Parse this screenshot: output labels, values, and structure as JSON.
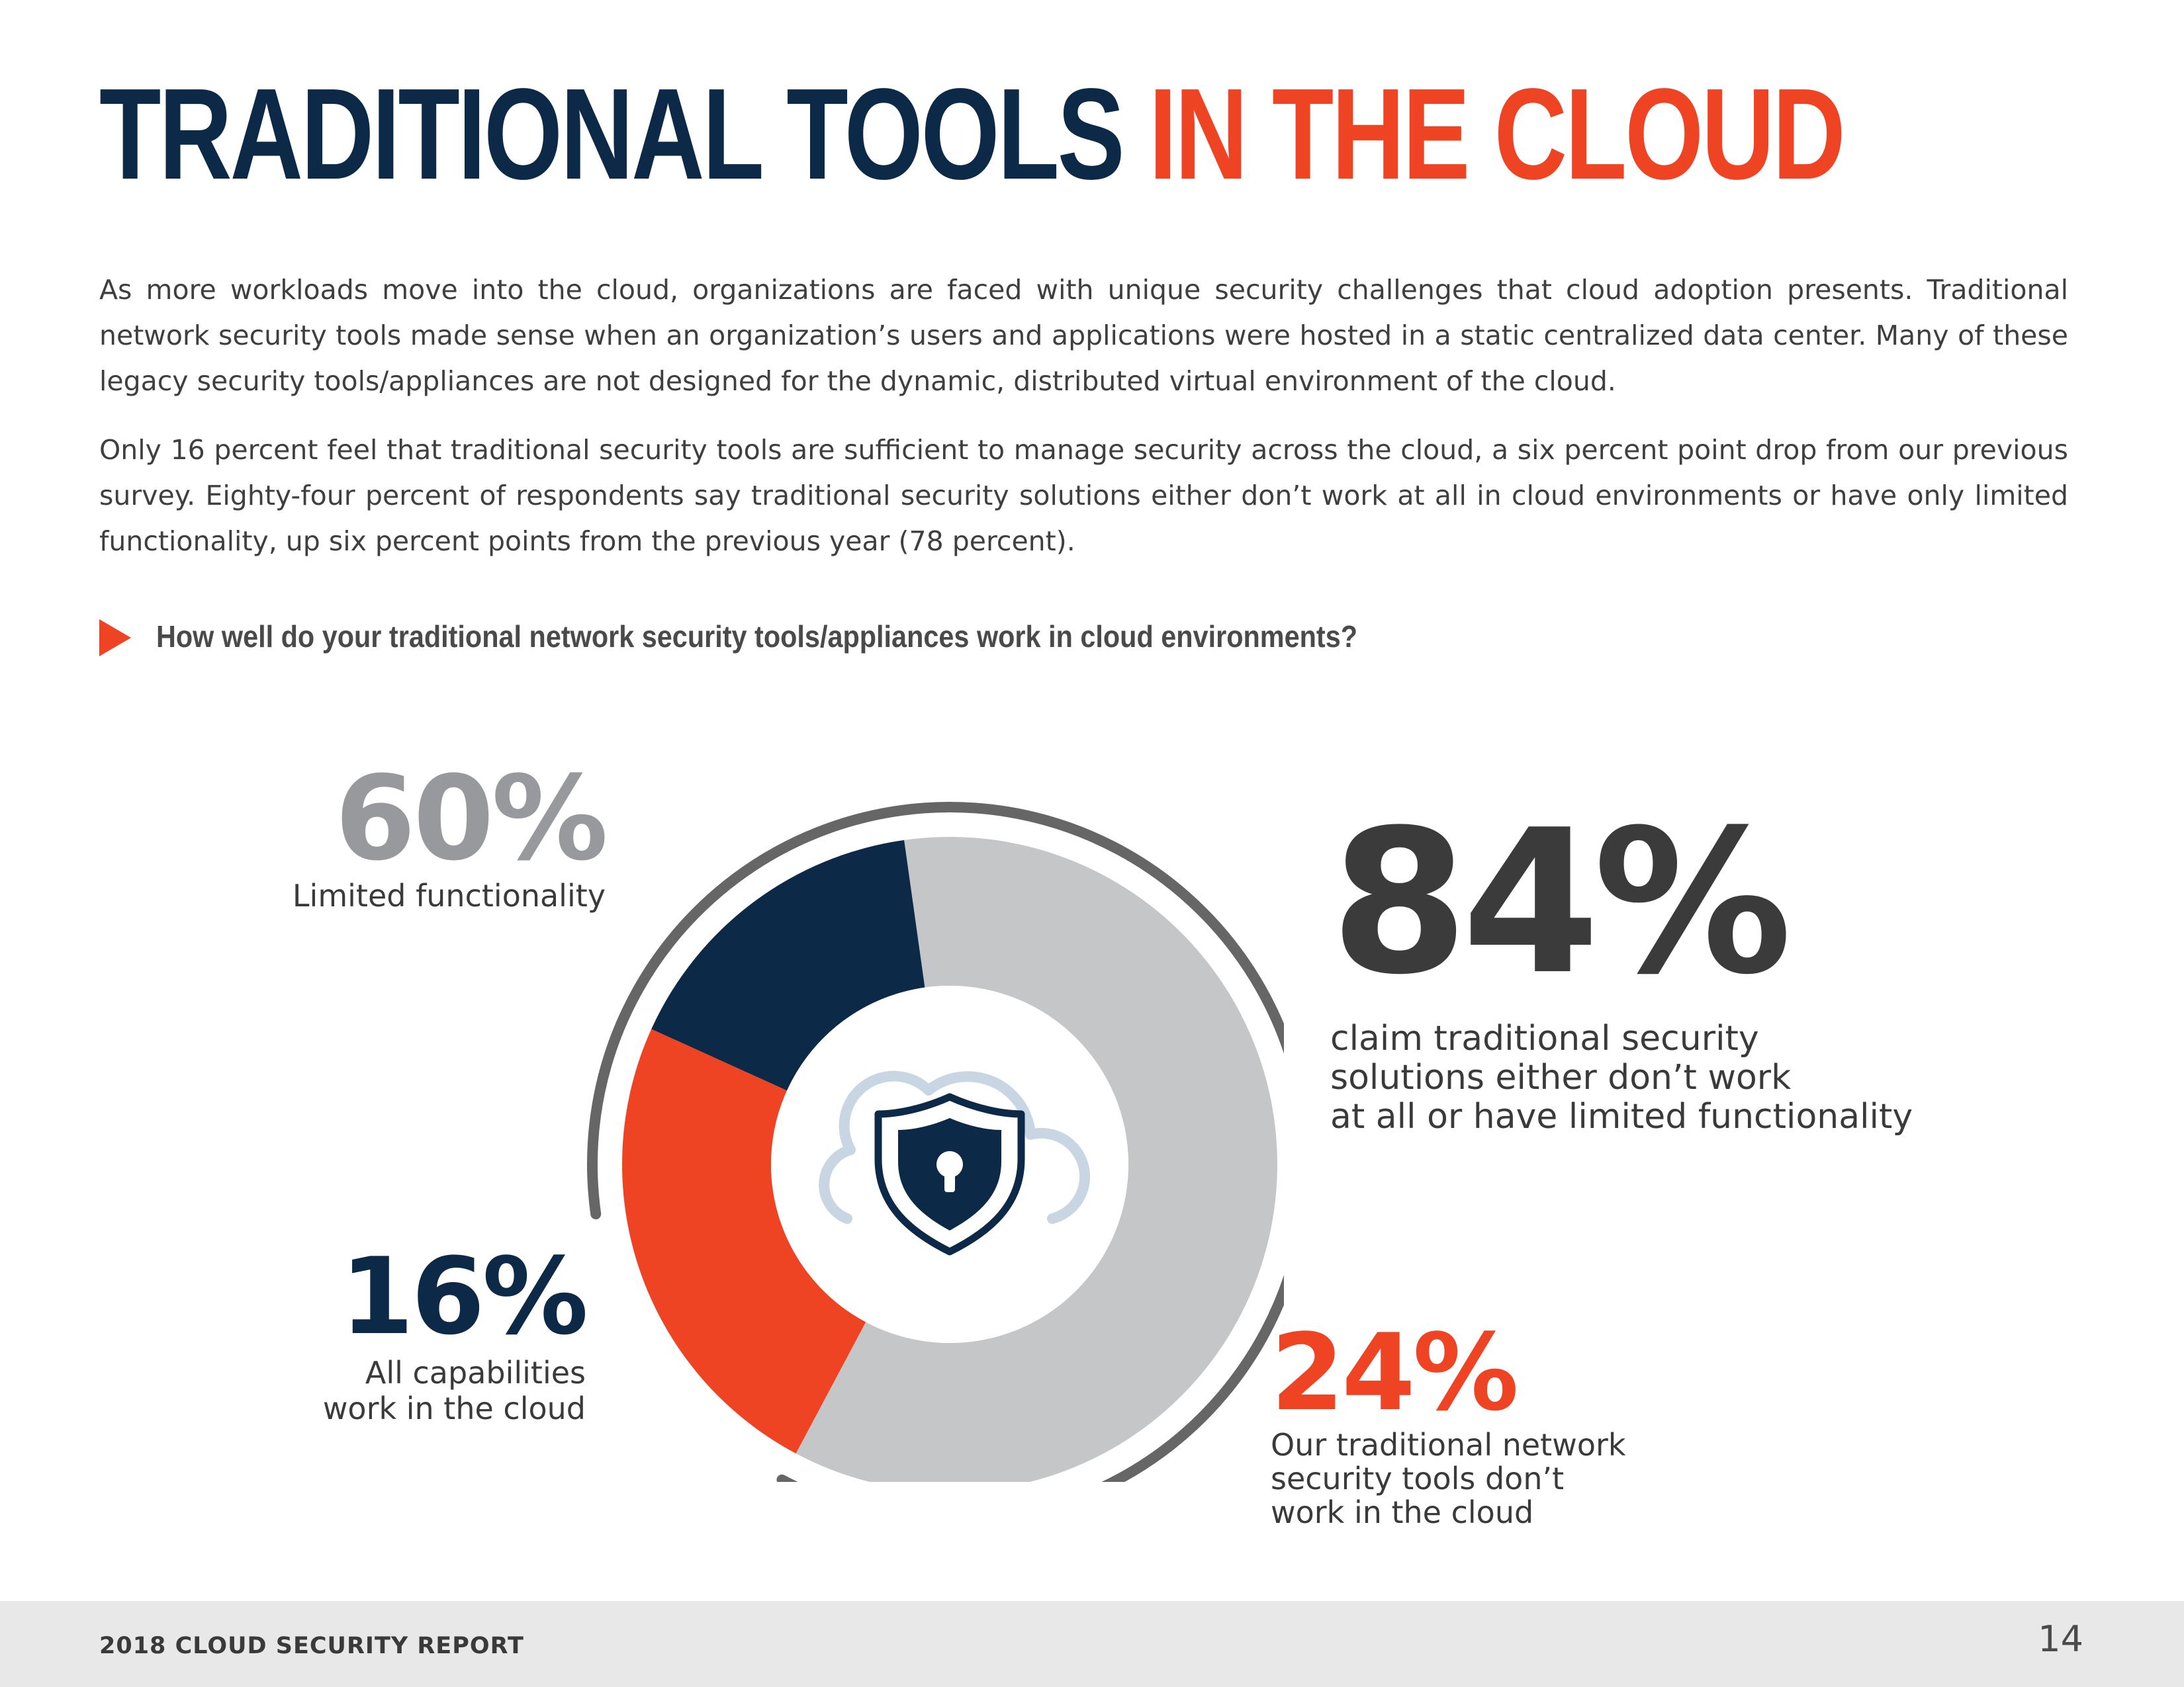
{
  "header": {
    "title_part1": "TRADITIONAL TOOLS",
    "title_part2": "IN THE CLOUD"
  },
  "body": {
    "paragraph1": "As more workloads move into the cloud, organizations are faced with unique security challenges that cloud adoption presents. Traditional network security tools made sense when an organization’s users and applications were hosted in a static centralized data center. Many of these legacy security tools/appliances are not designed for the dynamic, distributed virtual environment of the cloud.",
    "paragraph2": "Only 16 percent feel that traditional security tools are sufficient to manage security across the cloud, a six percent point drop from our previous survey. Eighty-four percent of respondents say traditional security solutions either don’t work at all in cloud environments or have only limited functionality, up six percent points from the previous year (78 percent)."
  },
  "question": "How well do your traditional network security tools/appliances work in cloud environments?",
  "stats": {
    "limited": {
      "value": "60%",
      "label": "Limited functionality"
    },
    "total": {
      "value": "84%",
      "label": "claim traditional security\nsolutions either don’t work\nat all or have limited functionality"
    },
    "all": {
      "value": "16%",
      "label": "All capabilities\nwork in the cloud"
    },
    "dont_work": {
      "value": "24%",
      "label": "Our traditional network\nsecurity tools don’t\nwork in the cloud"
    }
  },
  "chart_data": {
    "type": "pie",
    "style": "donut",
    "title": "How well do your traditional network security tools/appliances work in cloud environments?",
    "categories": [
      "Limited functionality",
      "Our traditional network security tools don’t work in the cloud",
      "All capabilities work in the cloud"
    ],
    "values": [
      60,
      24,
      16
    ],
    "colors": [
      "#c5c6c8",
      "#ef4423",
      "#0c2948"
    ],
    "bracket": {
      "label": "claim traditional security solutions either don’t work at all or have limited functionality",
      "value": 84
    },
    "center_icon": "cloud-shield-lock-icon"
  },
  "colors": {
    "navy": "#0c2948",
    "orange": "#ef4423",
    "gray": "#c5c6c8",
    "arc": "#666666"
  },
  "footer": {
    "title": "2018 CLOUD SECURITY REPORT",
    "page": "14"
  }
}
